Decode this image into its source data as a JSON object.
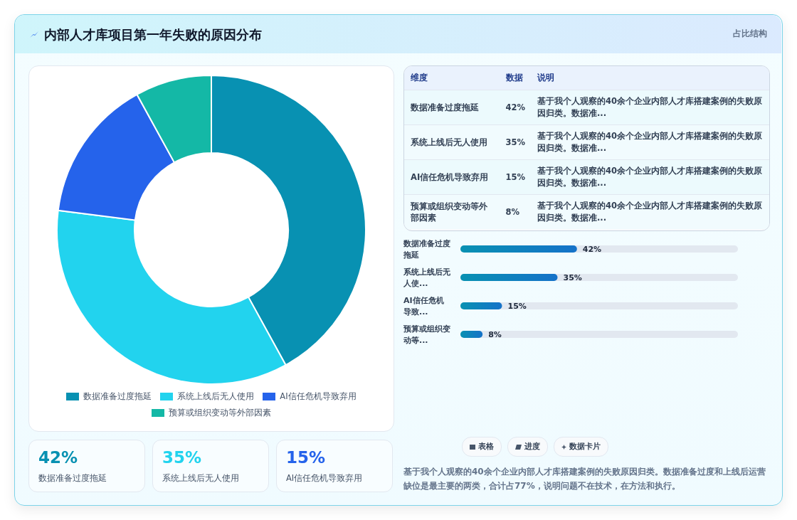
{
  "chart_data": [
    {
      "type": "donut",
      "title": "内部人才库项目第一年失败的原因分布",
      "annotations": [
        "占比结构"
      ],
      "categories": [
        "数据准备过度拖延",
        "系统上线后无人使用",
        "AI信任危机导致弃用",
        "预算或组织变动等外部因素"
      ],
      "values": [
        42,
        35,
        15,
        8
      ],
      "colors": [
        "#0891b2",
        "#22d3ee",
        "#2563eb",
        "#14b8a6"
      ],
      "legend": "bottom"
    },
    {
      "type": "bar",
      "orientation": "horizontal",
      "categories": [
        "数据准备过度拖延",
        "系统上线后无人使...",
        "AI信任危机导致...",
        "预算或组织变动等..."
      ],
      "xlim": [
        0,
        100
      ],
      "series": [
        {
          "color": "#1572c9",
          "values": [
            42,
            35,
            15,
            8
          ],
          "value_labels": [
            "42%",
            "35%",
            "15%",
            "8%"
          ]
        }
      ]
    },
    {
      "type": "other",
      "annotations": [
        "维度",
        "数据",
        "说明",
        "数据准备过度拖延",
        "42%",
        "基于我个人观察的40余个企业内部人才库搭建案例的失败原因归类。数据准...",
        "系统上线后无人使用",
        "35%",
        "基于我个人观察的40余个企业内部人才库搭建案例的失败原因归类。数据准...",
        "AI信任危机导致弃用",
        "15%",
        "基于我个人观察的40余个企业内部人才库搭建案例的失败原因归类。数据准...",
        "预算或组织变动等外部因素",
        "8%",
        "基于我个人观察的40余个企业内部人才库搭建案例的失败原因归类。数据准..."
      ]
    },
    {
      "type": "other",
      "annotations": [
        "42%",
        "数据准备过度拖延",
        "35%",
        "系统上线后无人使用",
        "15%",
        "AI信任危机导致弃用"
      ],
      "colors": [
        "#0891b2",
        "#22d3ee",
        "#2563eb"
      ]
    },
    {
      "type": "other",
      "annotations": [
        "表格",
        "进度",
        "数据卡片",
        "基于我个人观察的40余个企业内部人才库搭建案例的失败原因归类。数据准备过度和上线后运营缺位是最主要的两类，合计占77%，说明问题不在技术，在方法和执行。"
      ]
    }
  ]
}
